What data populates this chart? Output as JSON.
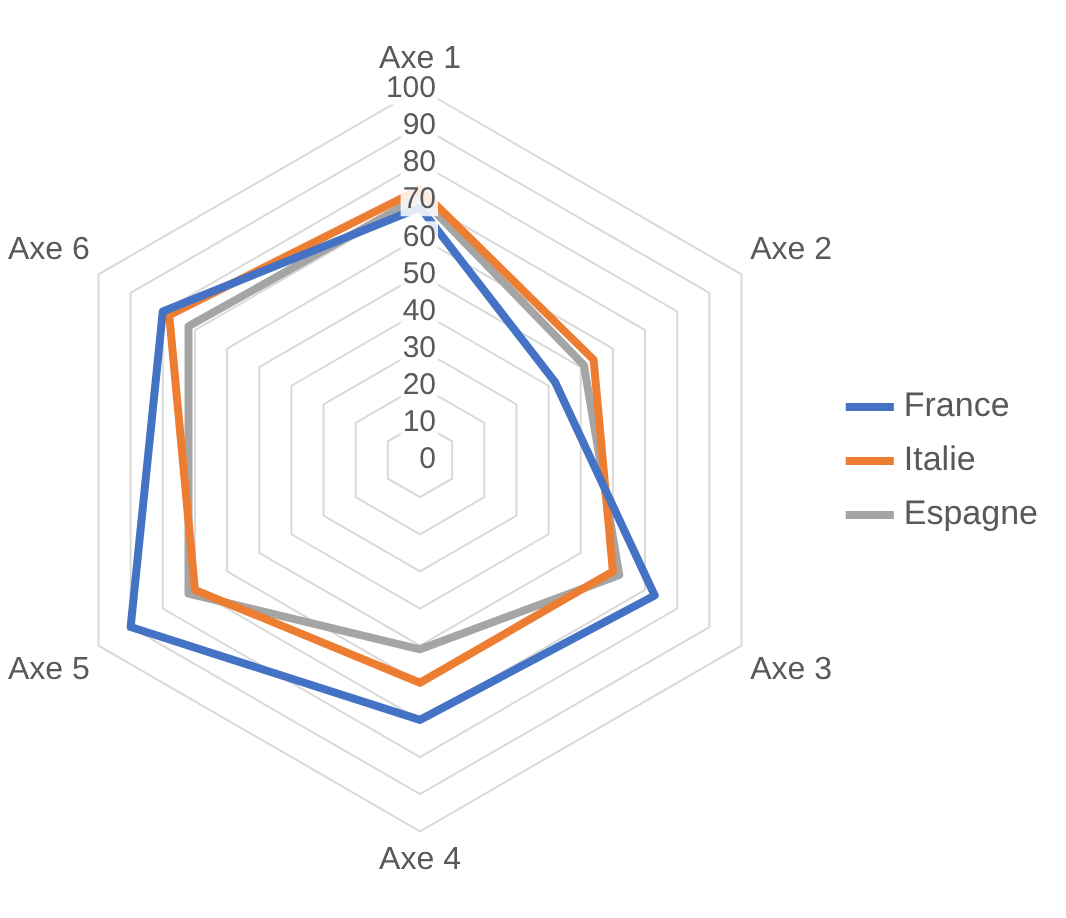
{
  "chart_data": {
    "type": "radar",
    "categories": [
      "Axe 1",
      "Axe 2",
      "Axe 3",
      "Axe 4",
      "Axe 5",
      "Axe 6"
    ],
    "series": [
      {
        "name": "France",
        "color": "#4472c4",
        "values": [
          68,
          42,
          73,
          70,
          90,
          80
        ]
      },
      {
        "name": "Italie",
        "color": "#ed7d31",
        "values": [
          73,
          54,
          60,
          60,
          70,
          78
        ]
      },
      {
        "name": "Espagne",
        "color": "#a5a5a5",
        "values": [
          71,
          51,
          62,
          51,
          72,
          72
        ]
      }
    ],
    "ylim": [
      0,
      100
    ],
    "yticks": [
      0,
      10,
      20,
      30,
      40,
      50,
      60,
      70,
      80,
      90,
      100
    ],
    "grid": true,
    "legend": "right",
    "marker": "none"
  }
}
